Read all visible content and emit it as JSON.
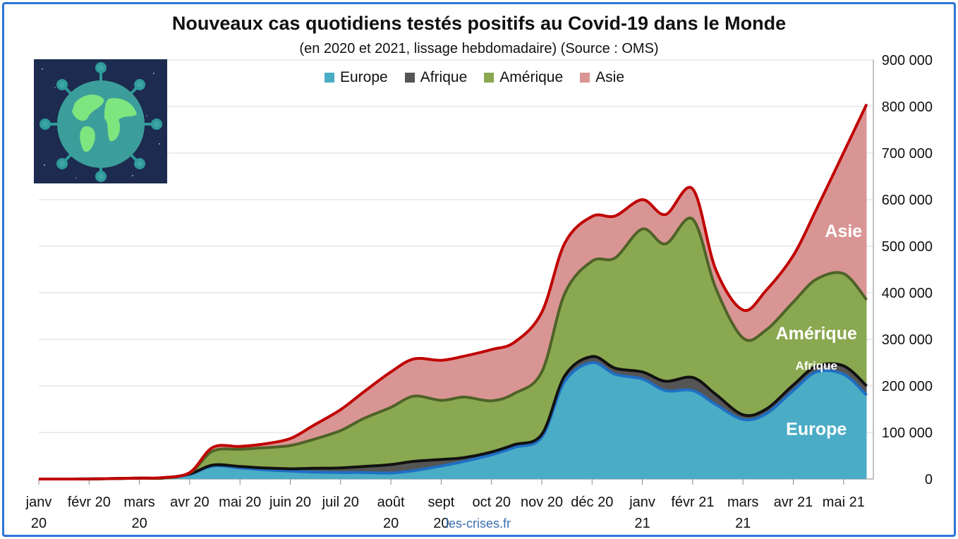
{
  "chart_data": {
    "type": "area",
    "stacked": true,
    "title": "Nouveaux cas quotidiens testés positifs au Covid-19 dans le Monde",
    "subtitle": "(en 2020 et 2021, lissage hebdomadaire) (Source : OMS)",
    "ylim": [
      0,
      900000
    ],
    "grid": true,
    "legend_position": "top",
    "y_axis_side": "right",
    "yticks": [
      "900 000",
      "800 000",
      "700 000",
      "600 000",
      "500 000",
      "400 000",
      "300 000",
      "200 000",
      "100 000",
      "0"
    ],
    "ytick_values": [
      900000,
      800000,
      700000,
      600000,
      500000,
      400000,
      300000,
      200000,
      100000,
      0
    ],
    "xticks": [
      {
        "line1": "janv",
        "line2": "20",
        "month": 0
      },
      {
        "line1": "févr 20",
        "line2": "",
        "month": 1
      },
      {
        "line1": "mars",
        "line2": "20",
        "month": 2
      },
      {
        "line1": "avr 20",
        "line2": "",
        "month": 3
      },
      {
        "line1": "mai 20",
        "line2": "",
        "month": 4
      },
      {
        "line1": "juin 20",
        "line2": "",
        "month": 5
      },
      {
        "line1": "juil 20",
        "line2": "",
        "month": 6
      },
      {
        "line1": "août",
        "line2": "20",
        "month": 7
      },
      {
        "line1": "sept",
        "line2": "20",
        "month": 8
      },
      {
        "line1": "oct 20",
        "line2": "",
        "month": 9
      },
      {
        "line1": "nov 20",
        "line2": "",
        "month": 10
      },
      {
        "line1": "déc 20",
        "line2": "",
        "month": 11
      },
      {
        "line1": "janv",
        "line2": "21",
        "month": 12
      },
      {
        "line1": "févr 21",
        "line2": "",
        "month": 13
      },
      {
        "line1": "mars",
        "line2": "21",
        "month": 14
      },
      {
        "line1": "avr 21",
        "line2": "",
        "month": 15
      },
      {
        "line1": "mai 21",
        "line2": "",
        "month": 16
      }
    ],
    "x": [
      "2020-01-01",
      "2020-02-01",
      "2020-03-01",
      "2020-03-15",
      "2020-04-01",
      "2020-04-15",
      "2020-05-01",
      "2020-05-15",
      "2020-06-01",
      "2020-06-15",
      "2020-07-01",
      "2020-07-15",
      "2020-08-01",
      "2020-08-15",
      "2020-09-01",
      "2020-09-15",
      "2020-10-01",
      "2020-10-15",
      "2020-11-01",
      "2020-11-15",
      "2020-12-01",
      "2020-12-15",
      "2021-01-01",
      "2021-01-15",
      "2021-02-01",
      "2021-02-15",
      "2021-03-01",
      "2021-03-15",
      "2021-04-01",
      "2021-04-15",
      "2021-05-01",
      "2021-05-15"
    ],
    "series": [
      {
        "name": "Europe",
        "color": "#4bacc6",
        "line_color": "#1f6fc4",
        "values": [
          0,
          200,
          2000,
          2000,
          10000,
          28000,
          24000,
          20000,
          17000,
          15000,
          14000,
          14000,
          13000,
          18000,
          28000,
          38000,
          52000,
          68000,
          90000,
          210000,
          250000,
          225000,
          215000,
          190000,
          190000,
          160000,
          128000,
          140000,
          190000,
          230000,
          225000,
          180000
        ]
      },
      {
        "name": "Afrique",
        "color": "#555555",
        "line_color": "#111111",
        "values": [
          0,
          0,
          0,
          0,
          1000,
          2000,
          3000,
          4000,
          5000,
          8000,
          10000,
          13000,
          18000,
          20000,
          14000,
          8000,
          6000,
          6000,
          6000,
          12000,
          13000,
          13000,
          15000,
          20000,
          28000,
          22000,
          10000,
          10000,
          12000,
          12000,
          18000,
          20000
        ]
      },
      {
        "name": "Amérique",
        "color": "#8aa850",
        "line_color": "#4f6228",
        "values": [
          0,
          0,
          0,
          0,
          2000,
          30000,
          37000,
          43000,
          50000,
          62000,
          80000,
          103000,
          123000,
          140000,
          127000,
          130000,
          110000,
          110000,
          134000,
          177000,
          205000,
          237000,
          307000,
          295000,
          340000,
          228000,
          165000,
          170000,
          178000,
          187000,
          198000,
          185000
        ]
      },
      {
        "name": "Asie",
        "color": "#d99594",
        "line_color": "#c00000",
        "values": [
          0,
          0,
          0,
          1000,
          1000,
          8000,
          6000,
          8000,
          15000,
          30000,
          45000,
          57000,
          76000,
          80000,
          86000,
          88000,
          110000,
          110000,
          128000,
          108000,
          96000,
          90000,
          63000,
          63000,
          65000,
          40000,
          60000,
          85000,
          100000,
          150000,
          260000,
          420000
        ]
      }
    ],
    "annotations": [
      {
        "text": "Asie",
        "x": "2021-05-01",
        "y": 520000
      },
      {
        "text": "Amérique",
        "x": "2021-04-15",
        "y": 300000
      },
      {
        "text": "Afrique",
        "x": "2021-04-15",
        "y": 235000
      },
      {
        "text": "Europe",
        "x": "2021-04-15",
        "y": 95000
      }
    ]
  },
  "source": "les-crises.fr",
  "globe_icon": "virus-globe-icon"
}
